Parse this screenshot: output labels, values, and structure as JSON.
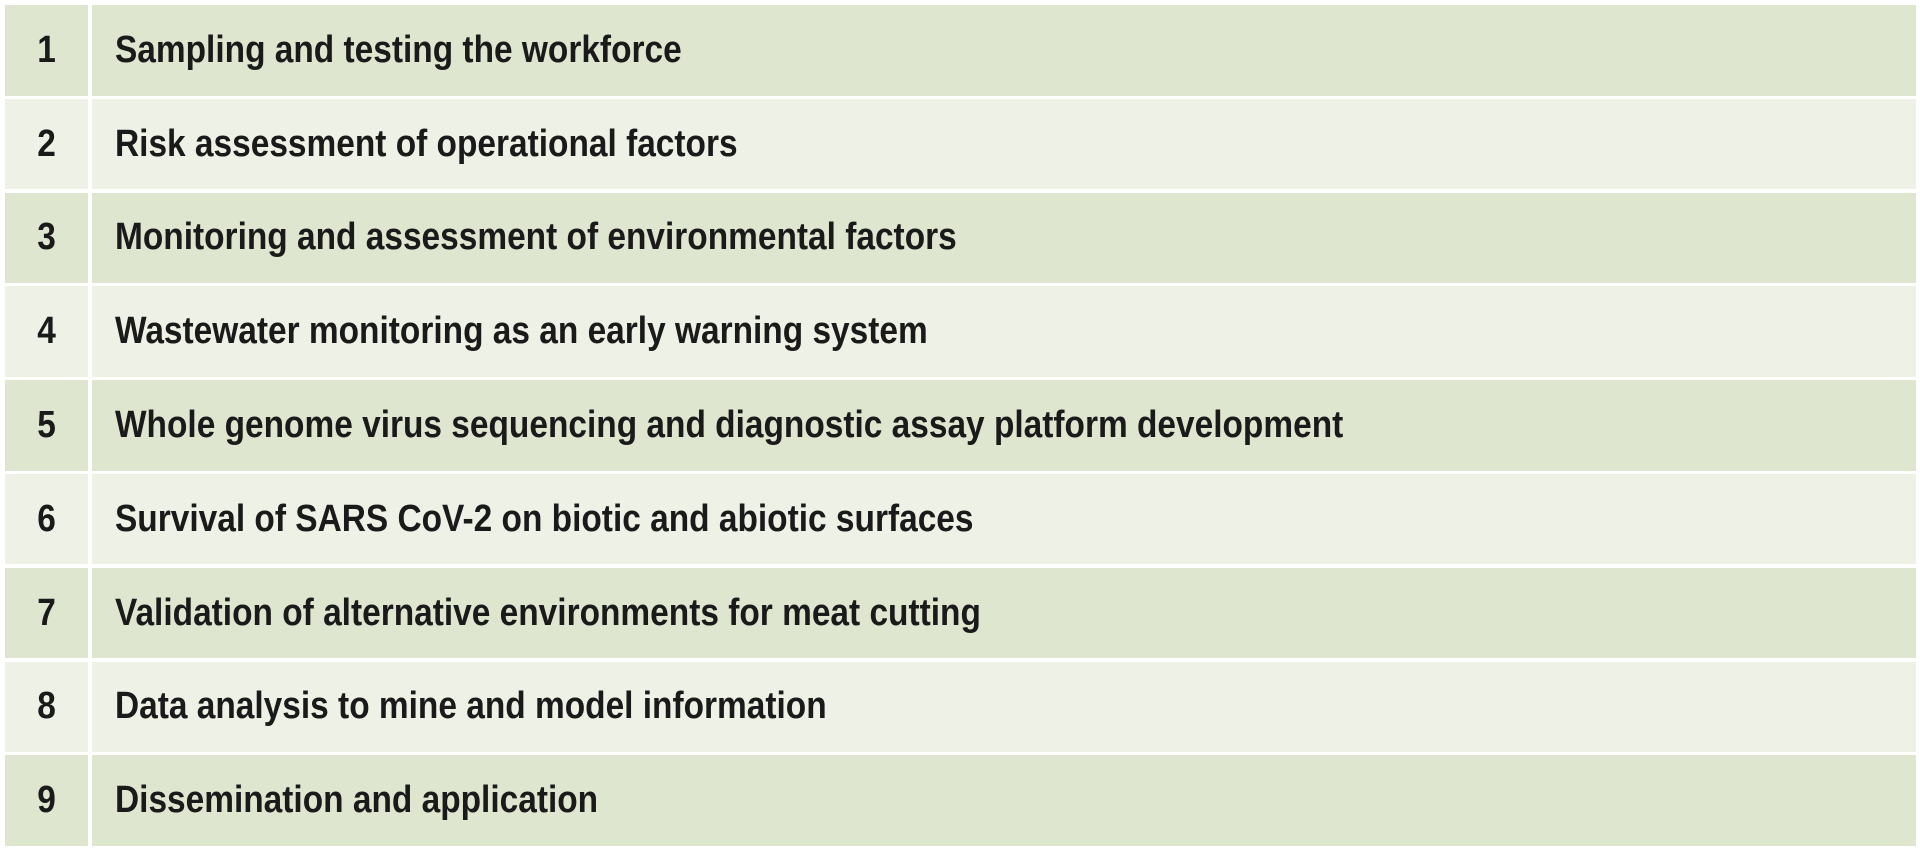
{
  "colors": {
    "row_dark": "#dfe6d0",
    "row_light": "#eef1e6",
    "text": "#1a1a1a"
  },
  "rows": [
    {
      "number": "1",
      "text": "Sampling and testing the workforce"
    },
    {
      "number": "2",
      "text": "Risk assessment of operational factors"
    },
    {
      "number": "3",
      "text": "Monitoring and assessment of environmental factors"
    },
    {
      "number": "4",
      "text": "Wastewater monitoring as an early warning system"
    },
    {
      "number": "5",
      "text": "Whole genome virus sequencing and diagnostic assay platform development"
    },
    {
      "number": "6",
      "text": "Survival of SARS CoV-2 on biotic and abiotic surfaces"
    },
    {
      "number": "7",
      "text": "Validation of alternative environments for meat cutting"
    },
    {
      "number": "8",
      "text": "Data analysis to mine and model information"
    },
    {
      "number": "9",
      "text": "Dissemination and application"
    }
  ]
}
